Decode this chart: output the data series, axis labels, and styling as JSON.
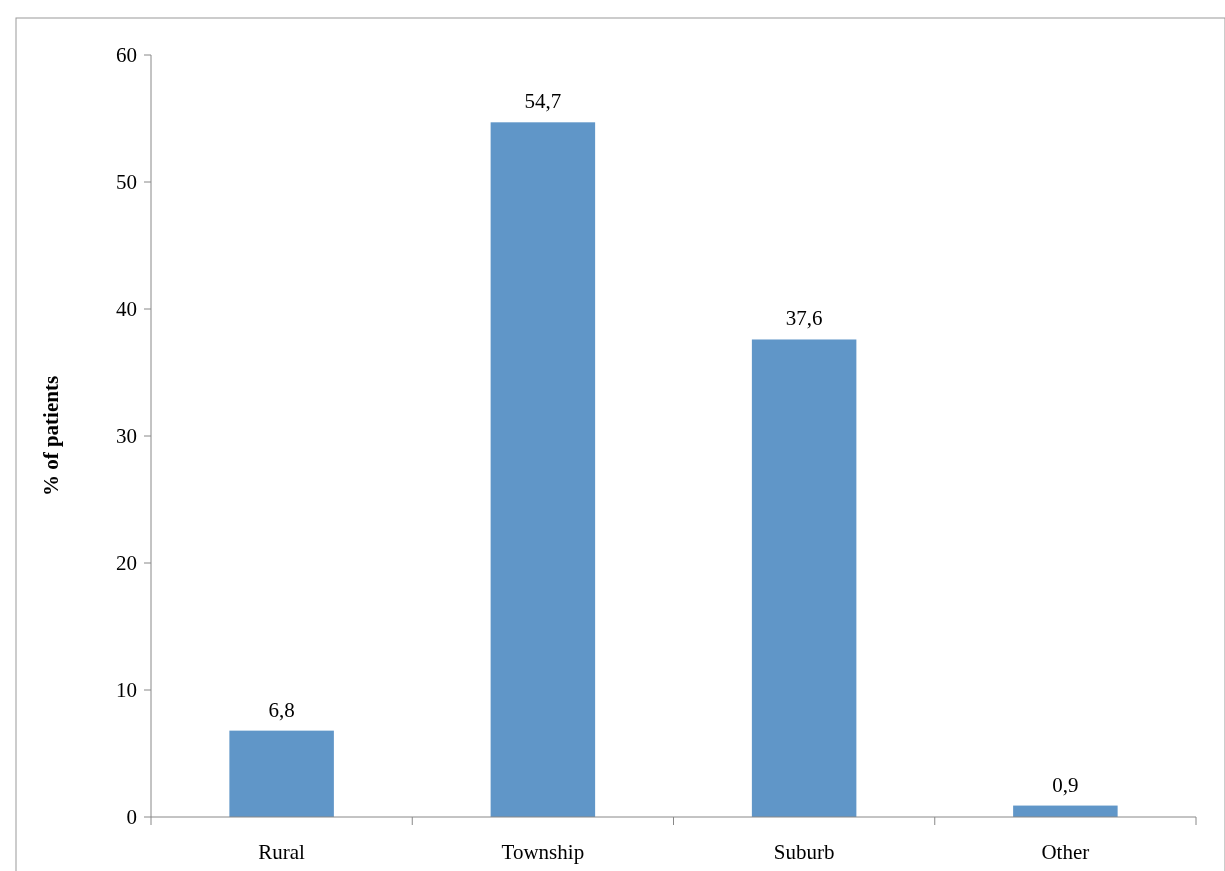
{
  "chart_data": {
    "type": "bar",
    "ylabel": "% of patients",
    "categories": [
      "Rural",
      "Township",
      "Suburb",
      "Other"
    ],
    "values": [
      6.8,
      54.7,
      37.6,
      0.9
    ],
    "color": "#6096c8",
    "value_labels": [
      "6,8",
      "54,7",
      "37,6",
      "0,9"
    ],
    "ylim": [
      0,
      60
    ],
    "yticks": [
      0,
      10,
      20,
      30,
      40,
      50,
      60
    ],
    "grid": false
  }
}
